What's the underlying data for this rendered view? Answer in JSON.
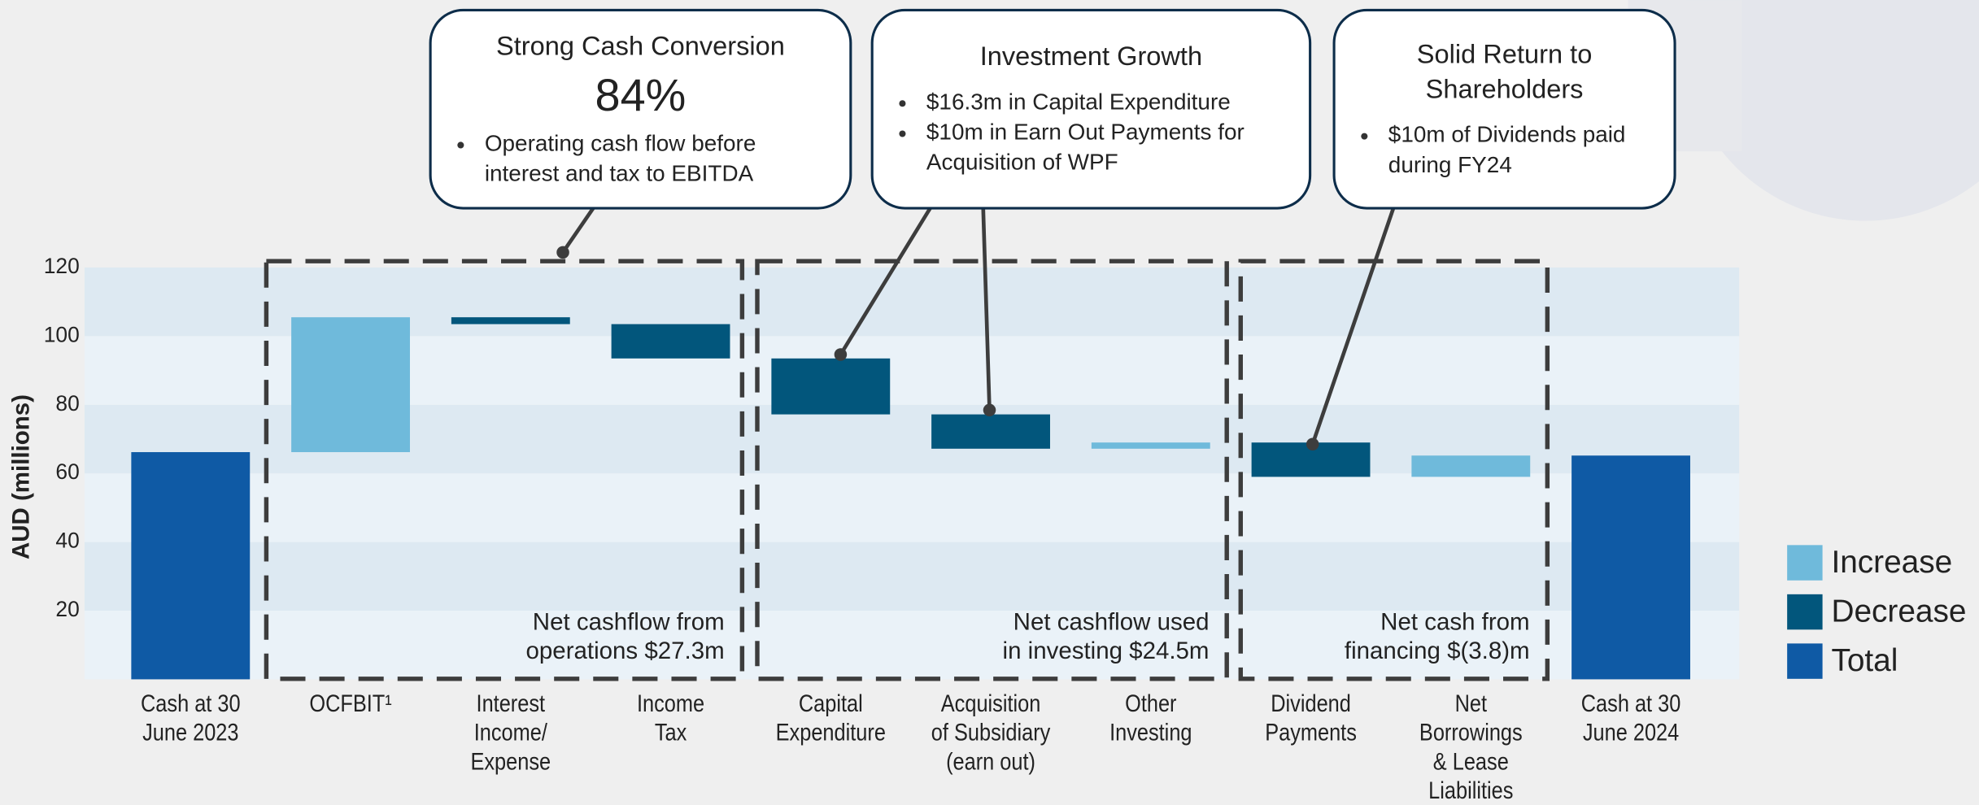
{
  "chart_data": {
    "type": "waterfall",
    "y_label": "AUD (millions)",
    "categories": [
      "Cash at 30\nJune 2023",
      "OCFBIT¹",
      "Interest\nIncome/\nExpense",
      "Income\nTax",
      "Capital\nExpenditure",
      "Acquisition\nof Subsidiary\n(earn out)",
      "Other\nInvesting",
      "Dividend\nPayments",
      "Net\nBorrowings\n& Lease\nLiabilities",
      "Cash at 30\nJune 2024"
    ],
    "series": [
      {
        "name": "Increase",
        "color": "#6fbadb",
        "values": [
          null,
          39.3,
          null,
          null,
          null,
          null,
          1.8,
          null,
          6.2,
          null
        ]
      },
      {
        "name": "Decrease",
        "color": "#02567c",
        "values": [
          null,
          null,
          -2,
          -10,
          -16.3,
          -10,
          null,
          -10,
          null,
          null
        ]
      },
      {
        "name": "Total",
        "color": "#0f5aa5",
        "values": [
          66.2,
          null,
          null,
          null,
          null,
          null,
          null,
          null,
          null,
          65.2
        ]
      }
    ],
    "ylim": [
      0,
      120
    ],
    "yticks": [
      20,
      40,
      60,
      80,
      100,
      120
    ],
    "grid": true,
    "legend": "right",
    "groups": [
      "Net cashflow from\noperations $27.3m",
      "Net cashflow used\nin investing $24.5m",
      "Net cash from\nfinancing $(3.8)m"
    ],
    "callouts": [
      {
        "title": "Strong Cash Conversion",
        "highlight": "84%",
        "bullets": [
          "Operating cash flow before\ninterest and tax to EBITDA"
        ]
      },
      {
        "title": "Investment Growth",
        "bullets": [
          "$16.3m in Capital Expenditure",
          "$10m in Earn Out Payments for\nAcquisition of WPF"
        ]
      },
      {
        "title": "Solid Return to\nShareholders",
        "bullets": [
          "$10m of Dividends paid\nduring FY24"
        ]
      }
    ]
  }
}
